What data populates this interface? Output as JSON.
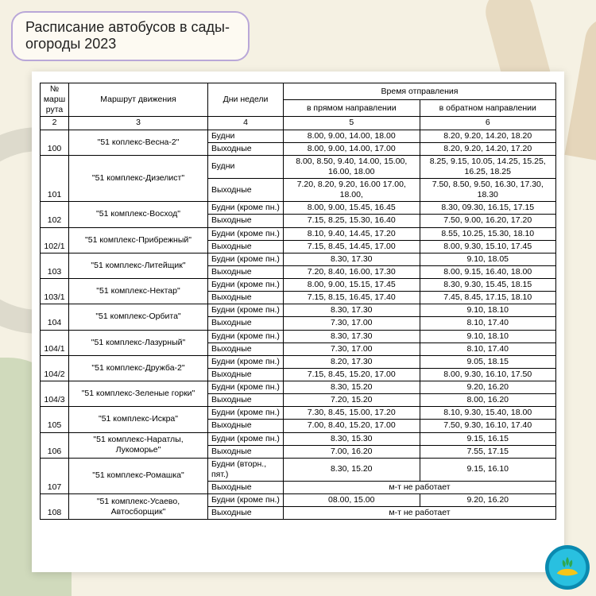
{
  "title": "Расписание автобусов в сады-огороды 2023",
  "headers": {
    "num": "№ марш рута",
    "route": "Маршрут движения",
    "days": "Дни недели",
    "times": "Время отправления",
    "forward": "в прямом направлении",
    "back": "в обратном направлении",
    "idx_num": "2",
    "idx_route": "3",
    "idx_days": "4",
    "idx_fwd": "5",
    "idx_back": "6"
  },
  "not_working": "м-т не работает",
  "rows": [
    {
      "num": "100",
      "route": "\"51 коплекс-Весна-2\"",
      "lines": [
        {
          "days": "Будни",
          "fwd": "8.00, 9.00, 14.00, 18.00",
          "back": "8.20, 9.20, 14.20, 18.20"
        },
        {
          "days": "Выходные",
          "fwd": "8.00, 9.00, 14.00, 17.00",
          "back": "8.20, 9.20, 14.20, 17.20"
        }
      ]
    },
    {
      "num": "101",
      "route": "\"51 комплекс-Дизелист\"",
      "lines": [
        {
          "days": "Будни",
          "fwd": "8.00, 8.50, 9.40, 14.00, 15.00, 16.00, 18.00",
          "back": "8.25, 9.15, 10.05, 14.25, 15.25, 16.25, 18.25"
        },
        {
          "days": "Выходные",
          "fwd": "7.20, 8.20, 9.20, 16.00 17.00, 18.00,",
          "back": "7.50, 8.50, 9.50, 16.30, 17.30, 18.30"
        }
      ]
    },
    {
      "num": "102",
      "route": "\"51 комплекс-Восход\"",
      "lines": [
        {
          "days": "Будни (кроме пн.)",
          "fwd": "8.00, 9.00, 15.45, 16.45",
          "back": "8.30, 09.30, 16.15, 17.15"
        },
        {
          "days": "Выходные",
          "fwd": "7.15, 8.25, 15.30, 16.40",
          "back": "7.50, 9.00, 16.20, 17.20"
        }
      ]
    },
    {
      "num": "102/1",
      "route": "\"51 комплекс-Прибрежный\"",
      "lines": [
        {
          "days": "Будни (кроме пн.)",
          "fwd": "8.10, 9.40, 14.45, 17.20",
          "back": "8.55, 10.25, 15.30, 18.10"
        },
        {
          "days": "Выходные",
          "fwd": "7.15, 8.45, 14.45, 17.00",
          "back": "8.00, 9.30, 15.10, 17.45"
        }
      ]
    },
    {
      "num": "103",
      "route": "\"51 комплекс-Литейщик\"",
      "lines": [
        {
          "days": "Будни (кроме пн.)",
          "fwd": "8.30, 17.30",
          "back": "9.10, 18.05"
        },
        {
          "days": "Выходные",
          "fwd": "7.20, 8.40, 16.00, 17.30",
          "back": "8.00, 9.15, 16.40, 18.00"
        }
      ]
    },
    {
      "num": "103/1",
      "route": "\"51 комплекс-Нектар\"",
      "lines": [
        {
          "days": "Будни (кроме пн.)",
          "fwd": "8.00, 9.00, 15.15, 17.45",
          "back": "8.30, 9.30, 15.45, 18.15"
        },
        {
          "days": "Выходные",
          "fwd": "7.15, 8.15, 16.45, 17.40",
          "back": "7.45, 8.45, 17.15, 18.10"
        }
      ]
    },
    {
      "num": "104",
      "route": "\"51 комплекс-Орбита\"",
      "lines": [
        {
          "days": "Будни (кроме пн.)",
          "fwd": "8.30, 17.30",
          "back": "9.10, 18.10"
        },
        {
          "days": "Выходные",
          "fwd": "7.30, 17.00",
          "back": "8.10, 17.40"
        }
      ]
    },
    {
      "num": "104/1",
      "route": "\"51 комплекс-Лазурный\"",
      "lines": [
        {
          "days": "Будни (кроме пн.)",
          "fwd": "8.30, 17.30",
          "back": "9.10, 18.10"
        },
        {
          "days": "Выходные",
          "fwd": "7.30, 17.00",
          "back": "8.10, 17.40"
        }
      ]
    },
    {
      "num": "104/2",
      "route": "\"51 комплекс-Дружба-2\"",
      "lines": [
        {
          "days": "Будни (кроме пн.)",
          "fwd": "8.20, 17.30",
          "back": "9.05, 18.15"
        },
        {
          "days": "Выходные",
          "fwd": "7.15, 8.45, 15.20, 17.00",
          "back": "8.00, 9.30, 16.10, 17.50"
        }
      ]
    },
    {
      "num": "104/3",
      "route": "\"51 комплекс-Зеленые горки\"",
      "lines": [
        {
          "days": "Будни (кроме пн.)",
          "fwd": "8.30, 15.20",
          "back": "9.20, 16.20"
        },
        {
          "days": "Выходные",
          "fwd": "7.20, 15.20",
          "back": "8.00, 16.20"
        }
      ]
    },
    {
      "num": "105",
      "route": "\"51 комплекс-Искра\"",
      "lines": [
        {
          "days": "Будни (кроме пн.)",
          "fwd": "7.30, 8.45, 15.00, 17.20",
          "back": "8.10, 9.30, 15.40, 18.00"
        },
        {
          "days": "Выходные",
          "fwd": "7.00, 8.40, 15.20, 17.00",
          "back": "7.50, 9.30, 16.10, 17.40"
        }
      ]
    },
    {
      "num": "106",
      "route": "\"51 комплекс-Наратлы, Лукоморье\"",
      "lines": [
        {
          "days": "Будни (кроме пн.)",
          "fwd": "8.30, 15.30",
          "back": "9.15, 16.15"
        },
        {
          "days": "Выходные",
          "fwd": "7.00, 16.20",
          "back": "7.55, 17.15"
        }
      ]
    },
    {
      "num": "107",
      "route": "\"51 комплекс-Ромашка\"",
      "lines": [
        {
          "days": "Будни (вторн., пят.)",
          "fwd": "8.30, 15.20",
          "back": "9.15, 16.10"
        },
        {
          "days": "Выходные",
          "merged": true
        }
      ]
    },
    {
      "num": "108",
      "route": "\"51 комплекс-Усаево, Автосборщик\"",
      "lines": [
        {
          "days": "Будни (кроме пн.)",
          "fwd": "08.00, 15.00",
          "back": "9.20, 16.20"
        },
        {
          "days": "Выходные",
          "merged": true
        }
      ]
    }
  ],
  "colors": {
    "page_bg": "#f5f1e3",
    "sheet_bg": "#ffffff",
    "border": "#000000",
    "badge_border": "#b9a7d8",
    "logo_outer": "#0a8ab0",
    "logo_inner": "#29c0e0",
    "logo_accent": "#f5c518"
  }
}
